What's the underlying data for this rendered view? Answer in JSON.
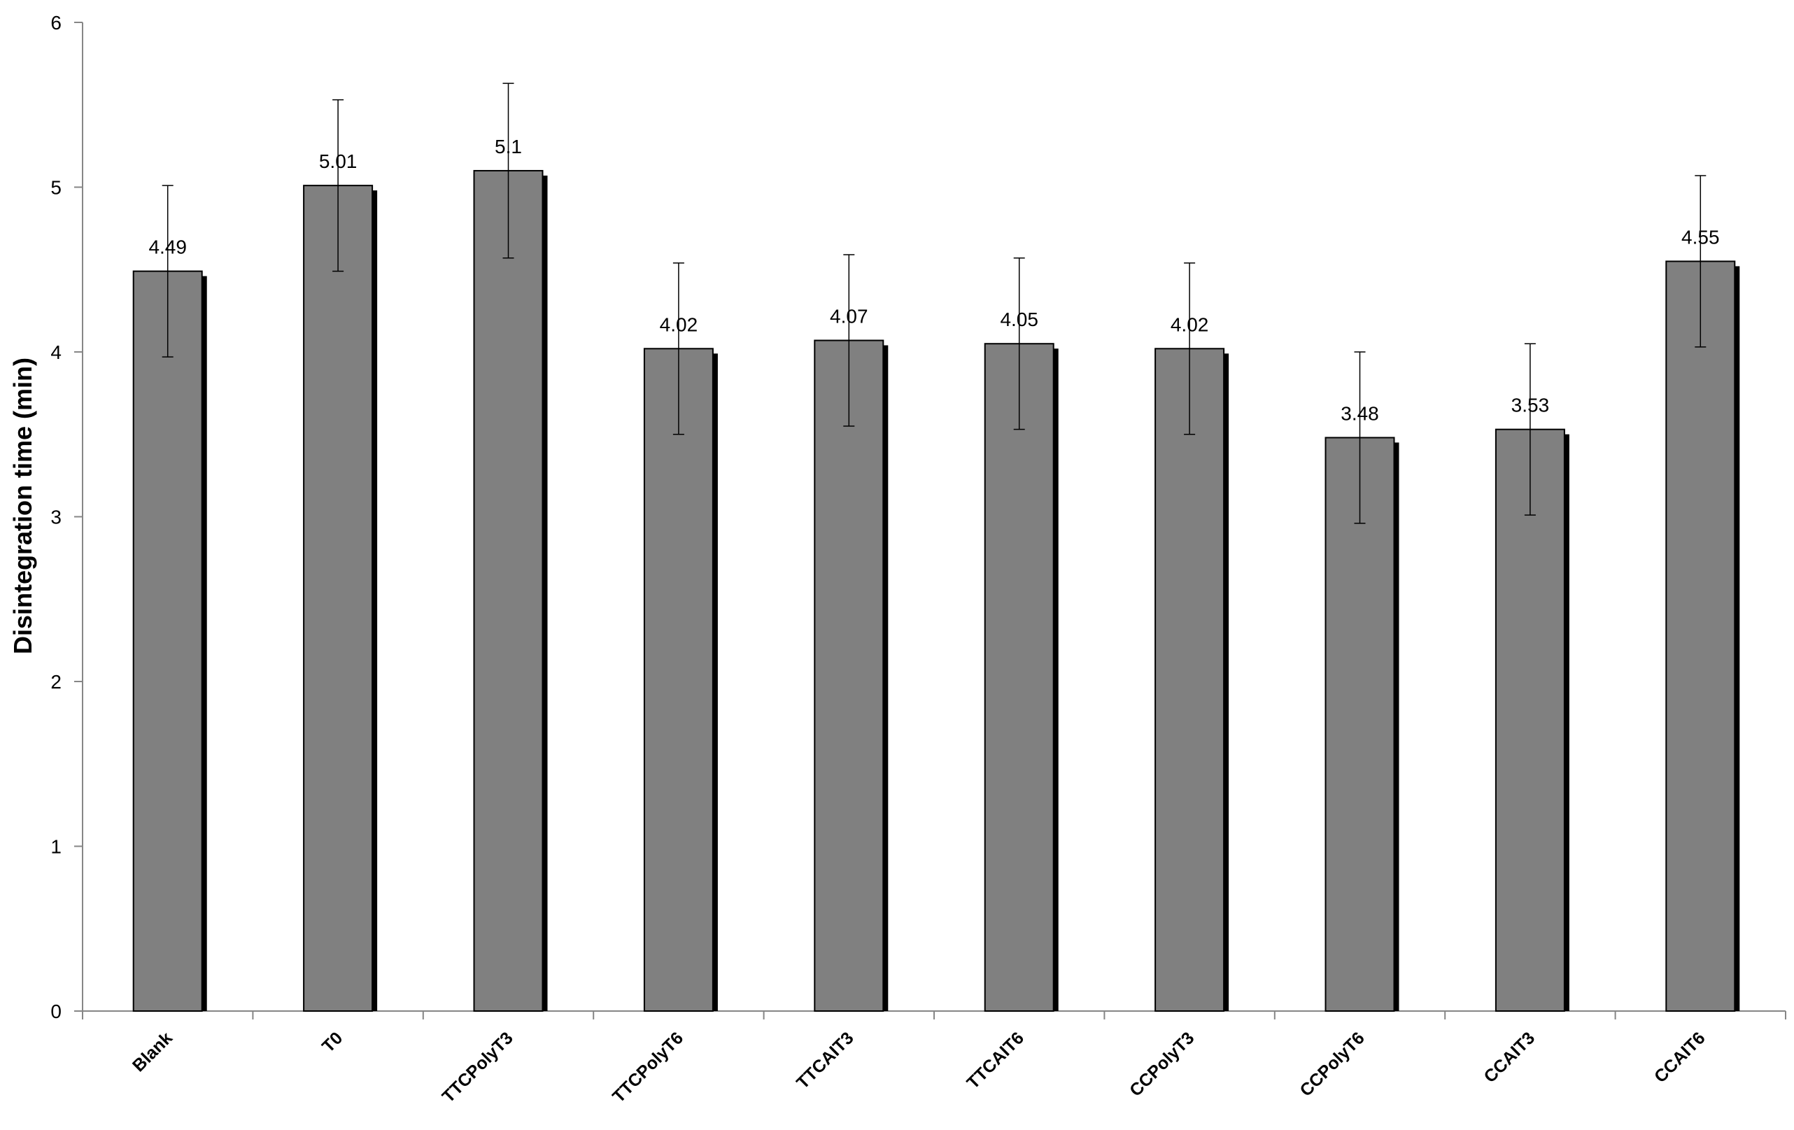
{
  "chart_data": {
    "type": "bar",
    "title": "",
    "xlabel": "",
    "ylabel": "Disintegration time (min)",
    "ylim": [
      0,
      6
    ],
    "yticks": [
      0,
      1,
      2,
      3,
      4,
      5,
      6
    ],
    "grid": false,
    "legend": "none",
    "categories": [
      "Blank",
      "T0",
      "TTCPolyT3",
      "TTCPolyT6",
      "TTCAIT3",
      "TTCAIT6",
      "CCPolyT3",
      "CCPolyT6",
      "CCAIT3",
      "CCAIT6"
    ],
    "values": [
      4.49,
      5.01,
      5.1,
      4.02,
      4.07,
      4.05,
      4.02,
      3.48,
      3.53,
      4.55
    ],
    "value_labels": [
      "4.49",
      "5.01",
      "5.1",
      "4.02",
      "4.07",
      "4.05",
      "4.02",
      "3.48",
      "3.53",
      "4.55"
    ],
    "error_plus_minus": [
      0.52,
      0.52,
      0.53,
      0.52,
      0.52,
      0.52,
      0.52,
      0.52,
      0.52,
      0.52
    ],
    "colors": {
      "bar_fill": "#808080",
      "bar_stroke": "#000000",
      "bar_shadow": "#000000",
      "axis": "#868686",
      "error_bar": "#000000"
    }
  }
}
